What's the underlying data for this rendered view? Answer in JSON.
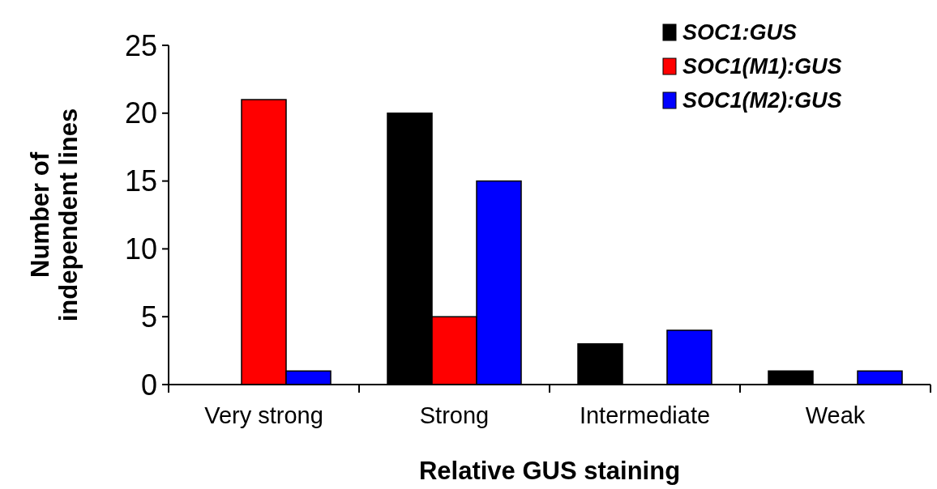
{
  "chart_data": {
    "type": "bar",
    "xlabel": "Relative GUS staining",
    "ylabel": "Number of independent lines",
    "categories": [
      "Very strong",
      "Strong",
      "Intermediate",
      "Weak"
    ],
    "series": [
      {
        "name": "SOC1:GUS",
        "color": "#000000",
        "values": [
          0,
          20,
          3,
          1
        ]
      },
      {
        "name": "SOC1(M1):GUS",
        "color": "#ff0000",
        "values": [
          21,
          5,
          0,
          0
        ]
      },
      {
        "name": "SOC1(M2):GUS",
        "color": "#0000ff",
        "values": [
          1,
          15,
          4,
          1
        ]
      }
    ],
    "ylim": [
      0,
      25
    ],
    "yticks": [
      0,
      5,
      10,
      15,
      20,
      25
    ],
    "grid": false,
    "legend": "top right"
  }
}
